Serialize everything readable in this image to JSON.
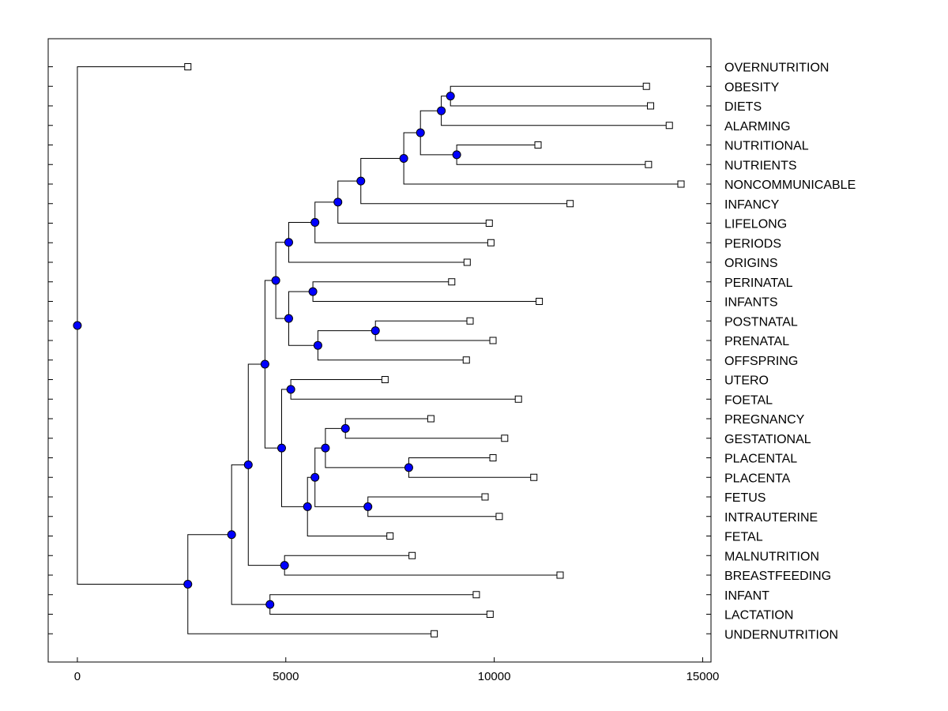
{
  "chart_data": {
    "type": "dendrogram",
    "title": "",
    "xlabel": "",
    "ylabel": "",
    "xlim": [
      -700,
      15200
    ],
    "x_ticks": [
      0,
      5000,
      10000,
      15000
    ],
    "x_tick_labels": [
      "0",
      "5000",
      "10000",
      "15000"
    ],
    "leaves": [
      {
        "label": "OVERNUTRITION",
        "value": 2650
      },
      {
        "label": "OBESITY",
        "value": 13650
      },
      {
        "label": "DIETS",
        "value": 13750
      },
      {
        "label": "ALARMING",
        "value": 14200
      },
      {
        "label": "NUTRITIONAL",
        "value": 11050
      },
      {
        "label": "NUTRIENTS",
        "value": 13700
      },
      {
        "label": "NONCOMMUNICABLE",
        "value": 14480
      },
      {
        "label": "INFANCY",
        "value": 11820
      },
      {
        "label": "LIFELONG",
        "value": 9880
      },
      {
        "label": "PERIODS",
        "value": 9920
      },
      {
        "label": "ORIGINS",
        "value": 9350
      },
      {
        "label": "PERINATAL",
        "value": 8980
      },
      {
        "label": "INFANTS",
        "value": 11080
      },
      {
        "label": "POSTNATAL",
        "value": 9420
      },
      {
        "label": "PRENATAL",
        "value": 9970
      },
      {
        "label": "OFFSPRING",
        "value": 9330
      },
      {
        "label": "UTERO",
        "value": 7380
      },
      {
        "label": "FOETAL",
        "value": 10580
      },
      {
        "label": "PREGNANCY",
        "value": 8480
      },
      {
        "label": "GESTATIONAL",
        "value": 10250
      },
      {
        "label": "PLACENTAL",
        "value": 9970
      },
      {
        "label": "PLACENTA",
        "value": 10950
      },
      {
        "label": "FETUS",
        "value": 9780
      },
      {
        "label": "INTRAUTERINE",
        "value": 10120
      },
      {
        "label": "FETAL",
        "value": 7500
      },
      {
        "label": "MALNUTRITION",
        "value": 8030
      },
      {
        "label": "BREASTFEEDING",
        "value": 11580
      },
      {
        "label": "INFANT",
        "value": 9570
      },
      {
        "label": "LACTATION",
        "value": 9900
      },
      {
        "label": "UNDERNUTRITION",
        "value": 8560
      }
    ],
    "merges": [
      {
        "a": "L1",
        "b": "L2",
        "value": 8950
      },
      {
        "a": "N0",
        "b": "L3",
        "value": 8730
      },
      {
        "a": "L4",
        "b": "L5",
        "value": 9100
      },
      {
        "a": "N1",
        "b": "N2",
        "value": 8230
      },
      {
        "a": "N3",
        "b": "L6",
        "value": 7830
      },
      {
        "a": "N4",
        "b": "L7",
        "value": 6800
      },
      {
        "a": "N5",
        "b": "L8",
        "value": 6250
      },
      {
        "a": "N6",
        "b": "L9",
        "value": 5700
      },
      {
        "a": "N7",
        "b": "L10",
        "value": 5070
      },
      {
        "a": "L11",
        "b": "L12",
        "value": 5650
      },
      {
        "a": "L13",
        "b": "L14",
        "value": 7150
      },
      {
        "a": "N10",
        "b": "L15",
        "value": 5770
      },
      {
        "a": "N9",
        "b": "N11",
        "value": 5070
      },
      {
        "a": "N8",
        "b": "N12",
        "value": 4760
      },
      {
        "a": "L16",
        "b": "L17",
        "value": 5120
      },
      {
        "a": "L18",
        "b": "L19",
        "value": 6430
      },
      {
        "a": "L20",
        "b": "L21",
        "value": 7950
      },
      {
        "a": "N15",
        "b": "N16",
        "value": 5950
      },
      {
        "a": "L22",
        "b": "L23",
        "value": 6970
      },
      {
        "a": "N17",
        "b": "N18",
        "value": 5700
      },
      {
        "a": "N19",
        "b": "L24",
        "value": 5520
      },
      {
        "a": "N14",
        "b": "N20",
        "value": 4900
      },
      {
        "a": "N13",
        "b": "N21",
        "value": 4500
      },
      {
        "a": "L25",
        "b": "L26",
        "value": 4970
      },
      {
        "a": "N22",
        "b": "N23",
        "value": 4100
      },
      {
        "a": "L27",
        "b": "L28",
        "value": 4620
      },
      {
        "a": "N24",
        "b": "N25",
        "value": 3700
      },
      {
        "a": "N26",
        "b": "L29",
        "value": 2650
      },
      {
        "a": "L0",
        "b": "N27",
        "value": 0
      }
    ],
    "colors": {
      "node_fill": "#0000ff",
      "line": "#000000",
      "leaf_marker": "#ffffff"
    }
  }
}
